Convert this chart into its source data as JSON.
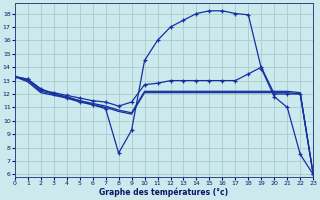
{
  "background_color": "#cce9ee",
  "grid_color": "#aacccc",
  "line_color": "#1530a0",
  "xlim": [
    0,
    23
  ],
  "ylim": [
    5.8,
    18.8
  ],
  "xticks": [
    0,
    1,
    2,
    3,
    4,
    5,
    6,
    7,
    8,
    9,
    10,
    11,
    12,
    13,
    14,
    15,
    16,
    17,
    18,
    19,
    20,
    21,
    22,
    23
  ],
  "yticks": [
    6,
    7,
    8,
    9,
    10,
    11,
    12,
    13,
    14,
    15,
    16,
    17,
    18
  ],
  "xlabel": "Graphe des températures (°c)",
  "lines": [
    {
      "x": [
        0,
        1,
        2,
        3,
        4,
        5,
        6,
        7,
        8,
        9,
        10,
        11,
        12,
        13,
        14,
        15,
        16,
        17,
        18,
        19,
        20,
        21,
        22,
        23
      ],
      "y": [
        13.3,
        13.1,
        12.4,
        12.0,
        11.7,
        11.4,
        11.2,
        10.9,
        7.6,
        9.3,
        14.5,
        16.0,
        17.0,
        17.5,
        18.0,
        18.2,
        18.2,
        18.0,
        17.9,
        13.9,
        11.8,
        11.0,
        7.5,
        6.0
      ],
      "marker": "+"
    },
    {
      "x": [
        0,
        1,
        2,
        3,
        4,
        5,
        6,
        7,
        8,
        9,
        10,
        11,
        12,
        13,
        14,
        15,
        16,
        17,
        18,
        19,
        20,
        21,
        22,
        23
      ],
      "y": [
        13.3,
        13.1,
        12.3,
        12.1,
        11.9,
        11.7,
        11.5,
        11.4,
        11.1,
        11.4,
        12.7,
        12.8,
        13.0,
        13.0,
        13.0,
        13.0,
        13.0,
        13.0,
        13.5,
        14.0,
        12.0,
        12.0,
        12.0,
        6.0
      ],
      "marker": "+"
    },
    {
      "x": [
        0,
        1,
        2,
        3,
        4,
        5,
        6,
        7,
        8,
        9,
        10,
        11,
        12,
        13,
        14,
        15,
        16,
        17,
        18,
        19,
        20,
        21,
        22,
        23
      ],
      "y": [
        13.3,
        13.0,
        12.2,
        12.0,
        11.8,
        11.5,
        11.3,
        11.1,
        10.8,
        10.6,
        12.2,
        12.2,
        12.2,
        12.2,
        12.2,
        12.2,
        12.2,
        12.2,
        12.2,
        12.2,
        12.2,
        12.2,
        12.1,
        6.0
      ],
      "marker": null
    },
    {
      "x": [
        0,
        1,
        2,
        3,
        4,
        5,
        6,
        7,
        8,
        9,
        10,
        11,
        12,
        13,
        14,
        15,
        16,
        17,
        18,
        19,
        20,
        21,
        22,
        23
      ],
      "y": [
        13.3,
        12.9,
        12.1,
        11.9,
        11.7,
        11.5,
        11.2,
        11.0,
        10.7,
        10.5,
        12.1,
        12.1,
        12.1,
        12.1,
        12.1,
        12.1,
        12.1,
        12.1,
        12.1,
        12.1,
        12.1,
        12.1,
        12.0,
        6.0
      ],
      "marker": null
    }
  ]
}
